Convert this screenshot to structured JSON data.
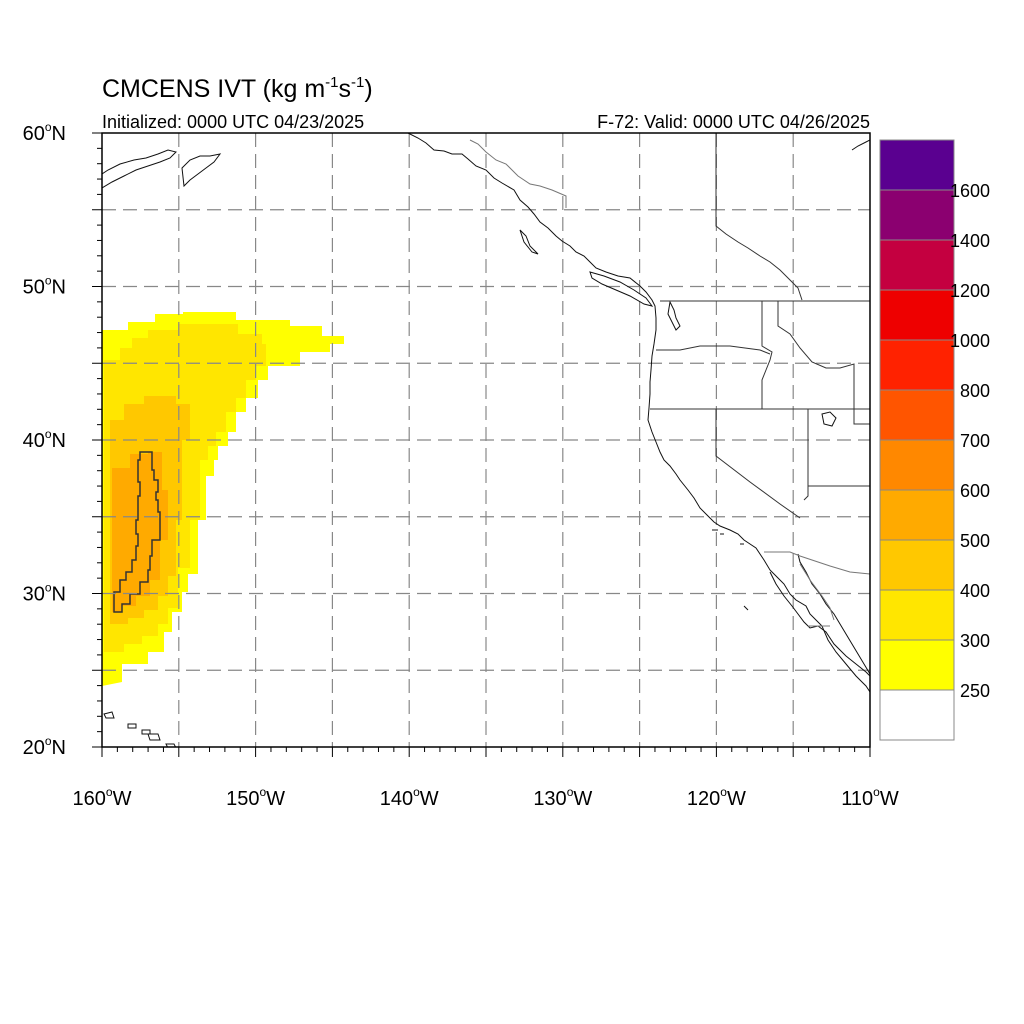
{
  "title": {
    "main": "CMCENS IVT (kg m",
    "exp1": "-1",
    "mid": "s",
    "exp2": "-1",
    "close": ")"
  },
  "subtitle_left": "Initialized: 0000 UTC 04/23/2025",
  "subtitle_right": "F-72: Valid: 0000 UTC 04/26/2025",
  "map": {
    "lon_range": [
      -160,
      -110
    ],
    "lat_range": [
      20,
      60
    ],
    "lat_ticks": [
      {
        "value": 60,
        "label": "60",
        "hemi": "N"
      },
      {
        "value": 50,
        "label": "50",
        "hemi": "N"
      },
      {
        "value": 40,
        "label": "40",
        "hemi": "N"
      },
      {
        "value": 30,
        "label": "30",
        "hemi": "N"
      },
      {
        "value": 20,
        "label": "20",
        "hemi": "N"
      }
    ],
    "lon_ticks": [
      {
        "value": -160,
        "label": "160",
        "hemi": "W"
      },
      {
        "value": -150,
        "label": "150",
        "hemi": "W"
      },
      {
        "value": -140,
        "label": "140",
        "hemi": "W"
      },
      {
        "value": -130,
        "label": "130",
        "hemi": "W"
      },
      {
        "value": -120,
        "label": "120",
        "hemi": "W"
      },
      {
        "value": -110,
        "label": "110",
        "hemi": "W"
      }
    ],
    "grid_lons": [
      -155,
      -150,
      -145,
      -140,
      -135,
      -130,
      -125,
      -120,
      -115
    ],
    "grid_lats": [
      25,
      30,
      35,
      40,
      45,
      50,
      55
    ]
  },
  "colorbar": {
    "levels": [
      "250",
      "300",
      "400",
      "500",
      "600",
      "700",
      "800",
      "1000",
      "1200",
      "1400",
      "1600"
    ],
    "colors": [
      "#ffffff",
      "#ffff00",
      "#ffe600",
      "#ffc800",
      "#ffaa00",
      "#ff8800",
      "#ff5500",
      "#ff2200",
      "#ee0000",
      "#c40040",
      "#8b0070",
      "#5a0090"
    ]
  },
  "chart_data": {
    "type": "heatmap",
    "variable": "IVT",
    "units": "kg m-1 s-1",
    "ivt_regions": [
      {
        "level": "250-300",
        "color": "#ffff00",
        "lon": [
          -160,
          -144.5
        ],
        "lat": [
          24,
          48
        ]
      },
      {
        "level": "300-400",
        "color": "#ffe600",
        "lon": [
          -160,
          -151.5
        ],
        "lat": [
          25,
          47
        ]
      },
      {
        "level": "400-500",
        "color": "#ffc800",
        "lon": [
          -160,
          -154.5
        ],
        "lat": [
          26.5,
          43
        ]
      },
      {
        "level": "500-600",
        "color": "#ffaa00",
        "lon": [
          -159.0,
          -156.5
        ],
        "lat": [
          29,
          39
        ]
      }
    ]
  }
}
